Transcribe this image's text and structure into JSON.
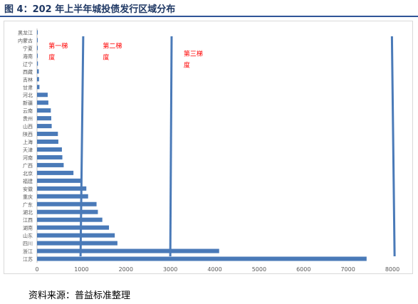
{
  "figure": {
    "title": "图 4：202 年上半年城投债发行区域分布",
    "source": "资料来源：普益标准整理"
  },
  "colors": {
    "bar": "#4a7ab8",
    "line": "#4a7ab8",
    "annotation": "#ff0000",
    "axis": "#bfbfbf",
    "title": "#1f3864"
  },
  "chart_data": {
    "type": "bar",
    "orientation": "horizontal",
    "categories": [
      "黑龙江",
      "内蒙古",
      "宁夏",
      "海南",
      "辽宁",
      "西藏",
      "吉林",
      "甘肃",
      "河北",
      "新疆",
      "云南",
      "贵州",
      "山西",
      "陕西",
      "上海",
      "天津",
      "河南",
      "广西",
      "北京",
      "福建",
      "安徽",
      "重庆",
      "广东",
      "湖北",
      "江西",
      "湖南",
      "山东",
      "四川",
      "浙江",
      "江苏"
    ],
    "values": [
      5,
      8,
      10,
      15,
      20,
      40,
      45,
      55,
      240,
      255,
      310,
      320,
      330,
      470,
      480,
      560,
      570,
      600,
      820,
      980,
      1110,
      1150,
      1340,
      1370,
      1470,
      1620,
      1750,
      1810,
      4100,
      7420
    ],
    "xticks": [
      0,
      1000,
      2000,
      3000,
      4000,
      5000,
      6000,
      7000,
      8000
    ],
    "xlim": [
      0,
      8000
    ],
    "grid": false,
    "reference_lines": [
      {
        "x_top": 1040,
        "x_bottom": 980
      },
      {
        "x_top": 3030,
        "x_bottom": 3000
      },
      {
        "x_top": 7990,
        "x_bottom": 8050
      }
    ],
    "annotations": [
      {
        "line1": "第一梯",
        "line2": "度",
        "x": 260,
        "y": "宁夏"
      },
      {
        "line1": "第二梯",
        "line2": "度",
        "x": 1480,
        "y": "宁夏"
      },
      {
        "line1": "第三梯",
        "line2": "度",
        "x": 3300,
        "y": "海南"
      }
    ]
  }
}
